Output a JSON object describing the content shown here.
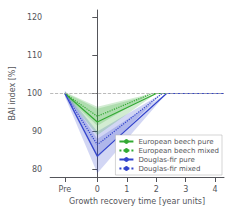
{
  "chart_data": {
    "type": "line",
    "title": "",
    "xlabel": "Growth recovery time [year units]",
    "ylabel": "BAI index [%]",
    "xlim": [
      -1.6,
      4.3
    ],
    "xticks": [
      {
        "value": -1.1,
        "label": "Pre"
      },
      0,
      1,
      2,
      3,
      4
    ],
    "ylim": [
      78,
      122
    ],
    "yticks": [
      80,
      90,
      100,
      110,
      120
    ],
    "grid": false,
    "legend": "lower right",
    "hline": 100,
    "series": [
      {
        "name": "European beech pure",
        "color": "#33aa33",
        "line_style": "solid",
        "x": [
          -1.1,
          0.0,
          2.0,
          4.3
        ],
        "values": [
          100,
          92.5,
          100,
          100
        ],
        "upper": [
          100.24,
          96.0,
          100,
          100
        ],
        "lower": [
          99.76,
          89.0,
          100,
          100
        ]
      },
      {
        "name": "European beech mixed",
        "color": "#33aa33",
        "line_style": "dotted",
        "x": [
          -1.1,
          0.0,
          1.85,
          4.3
        ],
        "values": [
          100,
          94.0,
          100,
          100
        ],
        "upper": [
          100.4,
          96.5,
          100,
          100
        ],
        "lower": [
          99.6,
          91.5,
          100,
          100
        ]
      },
      {
        "name": "Douglas-fir pure",
        "color": "#3344cc",
        "line_style": "solid",
        "x": [
          -1.1,
          0.0,
          2.35,
          4.3
        ],
        "values": [
          100,
          83.5,
          100,
          100
        ],
        "upper": [
          100.8,
          88.0,
          100,
          100
        ],
        "lower": [
          99.2,
          79.0,
          100,
          100
        ]
      },
      {
        "name": "Douglas-fir mixed",
        "color": "#3344cc",
        "line_style": "dotted",
        "x": [
          -1.1,
          0.0,
          2.2,
          4.3
        ],
        "values": [
          100,
          86.5,
          100,
          100
        ],
        "upper": [
          100.56,
          90.0,
          100,
          100
        ],
        "lower": [
          99.44,
          83.0,
          100,
          100
        ]
      }
    ]
  }
}
